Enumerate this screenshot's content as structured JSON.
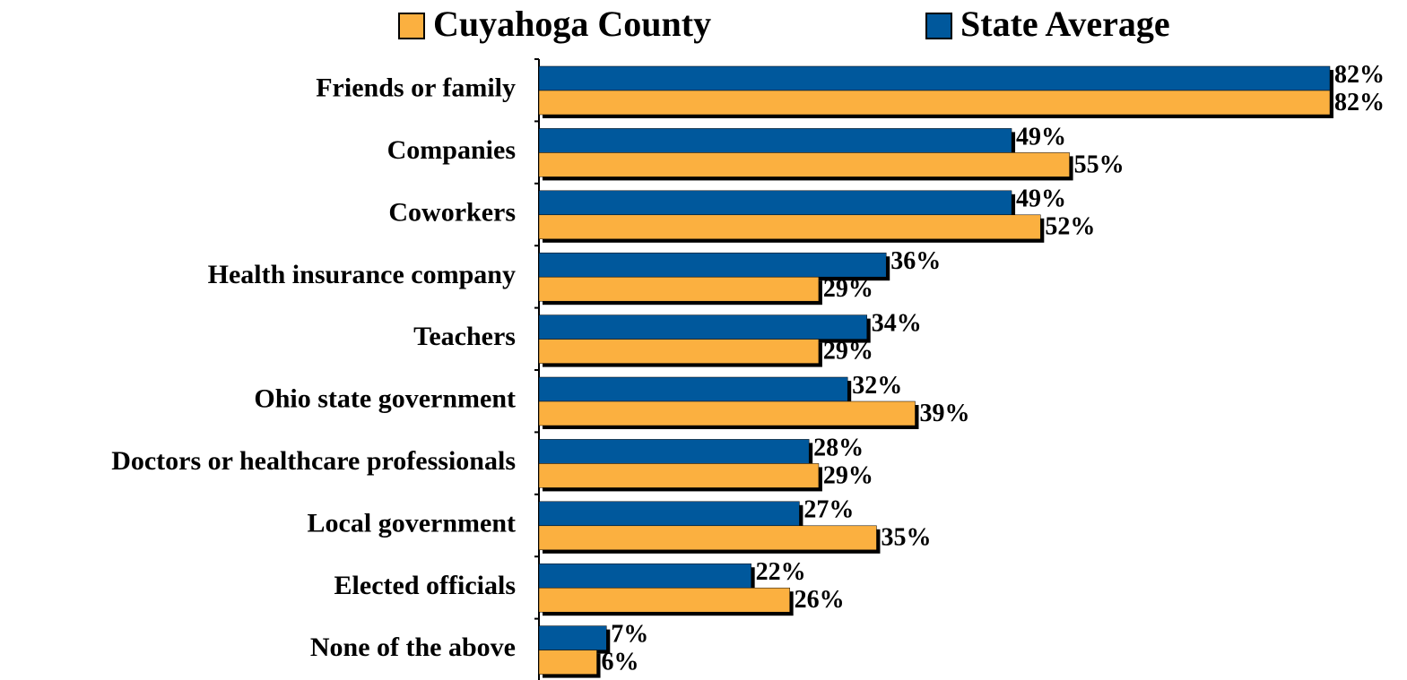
{
  "chart_data": {
    "type": "hbar",
    "categories": [
      "Friends or family",
      "Companies",
      "Coworkers",
      "Health insurance company",
      "Teachers",
      "Ohio state government",
      "Doctors or healthcare professionals",
      "Local government",
      "Elected officials",
      "None of the above"
    ],
    "series": [
      {
        "name": "Cuyahoga County",
        "color": "#fbb040",
        "values": [
          82,
          55,
          52,
          29,
          29,
          39,
          29,
          35,
          26,
          6
        ],
        "value_labels": [
          "82%",
          "55%",
          "52%",
          "29%",
          "29%",
          "39%",
          "29%",
          "35%",
          "26%",
          "6%"
        ]
      },
      {
        "name": "State Average",
        "color": "#00589c",
        "values": [
          82,
          49,
          49,
          36,
          34,
          32,
          28,
          27,
          22,
          7
        ],
        "value_labels": [
          "82%",
          "49%",
          "49%",
          "36%",
          "34%",
          "32%",
          "28%",
          "27%",
          "22%",
          "7%"
        ]
      }
    ],
    "legend": "top"
  }
}
